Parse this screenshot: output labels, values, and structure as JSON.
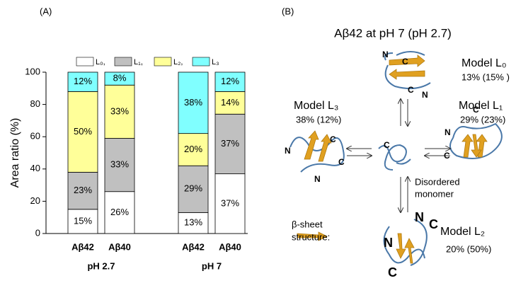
{
  "panel_labels": [
    "(A)",
    "(B)"
  ],
  "chart_data": {
    "type": "stacked-bar",
    "y_label": "Area ratio (%)",
    "categories": [
      "Aβ42",
      "Aβ40",
      "Aβ42",
      "Aβ40"
    ],
    "group_labels": [
      "pH 2.7",
      "pH 7"
    ],
    "series": [
      {
        "name": "L₀,",
        "color": "#ffffff",
        "values": [
          15,
          26,
          13,
          37
        ],
        "value_labels": [
          "15%",
          "26%",
          "13%",
          "37%"
        ]
      },
      {
        "name": "L₁,",
        "color": "#c0c0c0",
        "values": [
          23,
          33,
          29,
          37
        ],
        "value_labels": [
          "23%",
          "33%",
          "29%",
          "37%"
        ]
      },
      {
        "name": "L₂,",
        "color": "#ffff99",
        "values": [
          50,
          33,
          20,
          14
        ],
        "value_labels": [
          "50%",
          "33%",
          "20%",
          "14%"
        ]
      },
      {
        "name": "L₃",
        "color": "#80ffff",
        "values": [
          12,
          8,
          38,
          12
        ],
        "value_labels": [
          "12%",
          "8%",
          "38%",
          "12%"
        ]
      }
    ],
    "ylim": [
      0,
      100
    ],
    "yticks": [
      0,
      20,
      40,
      60,
      80,
      100
    ],
    "legend": "top"
  },
  "diagram": {
    "title": "Aβ42 at pH 7 (pH 2.7)",
    "models": [
      {
        "label": "Model L₀",
        "ratio": "13% (15% )"
      },
      {
        "label": "Model L₁",
        "ratio": "29% (23%)"
      },
      {
        "label": "Model L₂",
        "ratio": "20% (50%)"
      },
      {
        "label": "Model L₃",
        "ratio": "38% (12%)"
      }
    ],
    "monomer": [
      "Disordered",
      "monomer"
    ],
    "legend": [
      "β-sheet",
      "structure:"
    ],
    "termini": [
      "N",
      "C",
      "C",
      "N",
      "N",
      "C",
      "C",
      "N",
      "C",
      "N",
      "C",
      "C",
      "N",
      "C",
      "N",
      "C"
    ]
  }
}
